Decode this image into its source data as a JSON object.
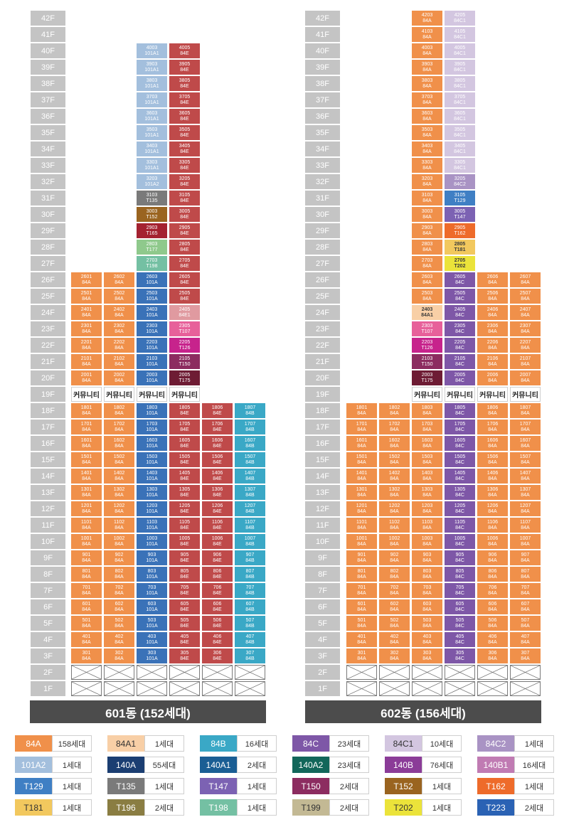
{
  "floors": [
    "42F",
    "41F",
    "40F",
    "39F",
    "38F",
    "37F",
    "36F",
    "35F",
    "34F",
    "33F",
    "32F",
    "31F",
    "30F",
    "29F",
    "28F",
    "27F",
    "26F",
    "25F",
    "24F",
    "23F",
    "22F",
    "21F",
    "20F",
    "19F",
    "18F",
    "17F",
    "16F",
    "15F",
    "14F",
    "13F",
    "12F",
    "11F",
    "10F",
    "9F",
    "8F",
    "7F",
    "6F",
    "5F",
    "4F",
    "3F",
    "2F",
    "1F"
  ],
  "community_label": "커뮤니티",
  "buildings": [
    {
      "name": "601동 (152세대)"
    },
    {
      "name": "602동 (156세대)"
    }
  ],
  "type_colors": {
    "84A": "#f0904a",
    "84A1": "#f8cfa6",
    "84B": "#3aa8c6",
    "84C": "#7e57a7",
    "84C1": "#d3c6e0",
    "84C2": "#a993c4",
    "101A1": "#a3bfdd",
    "101A2": "#a3bfdd",
    "101A": "#3a72b8",
    "84E": "#bf4a4a",
    "84E1": "#e09aa0",
    "T129": "#3f7fc4",
    "T135": "#7a7a7a",
    "T147": "#7c62b3",
    "T150": "#8c2c60",
    "T152": "#9a6420",
    "T162": "#ee6b2a",
    "T181": "#f2c85e",
    "T196": "#8a7d42",
    "T198": "#74c0a3",
    "T199": "#c3b994",
    "T202": "#ebe33a",
    "T223": "#2a62b4",
    "T107": "#e7609a",
    "T126": "#c7238c",
    "T165": "#a42230",
    "T177": "#8fc98c",
    "T175": "#6e1c34"
  },
  "units": [
    {
      "u": "4003",
      "t": "101A1"
    },
    {
      "u": "4005",
      "t": "84E"
    },
    {
      "u": "3903",
      "t": "101A1"
    },
    {
      "u": "3905",
      "t": "84E"
    },
    {
      "u": "3803",
      "t": "101A1"
    },
    {
      "u": "3805",
      "t": "84E"
    },
    {
      "u": "3703",
      "t": "101A1"
    },
    {
      "u": "3705",
      "t": "84E"
    },
    {
      "u": "3603",
      "t": "101A1"
    },
    {
      "u": "3605",
      "t": "84E"
    },
    {
      "u": "3503",
      "t": "101A1"
    },
    {
      "u": "3505",
      "t": "84E"
    },
    {
      "u": "3403",
      "t": "101A1"
    },
    {
      "u": "3405",
      "t": "84E"
    },
    {
      "u": "3303",
      "t": "101A1"
    },
    {
      "u": "3305",
      "t": "84E"
    },
    {
      "u": "3203",
      "t": "101A2"
    },
    {
      "u": "3205",
      "t": "84E"
    },
    {
      "u": "3103",
      "t": "T135"
    },
    {
      "u": "3105",
      "t": "84E"
    },
    {
      "u": "3003",
      "t": "T152"
    },
    {
      "u": "3005",
      "t": "84E"
    },
    {
      "u": "2903",
      "t": "T165"
    },
    {
      "u": "2905",
      "t": "84E"
    },
    {
      "u": "2803",
      "t": "T177"
    },
    {
      "u": "2805",
      "t": "84E"
    },
    {
      "u": "2703",
      "t": "T198"
    },
    {
      "u": "2705",
      "t": "84E"
    },
    {
      "u": "2601",
      "t": "84A"
    },
    {
      "u": "2602",
      "t": "84A"
    },
    {
      "u": "2603",
      "t": "101A"
    },
    {
      "u": "2605",
      "t": "84E"
    },
    {
      "u": "2501",
      "t": "84A"
    },
    {
      "u": "2502",
      "t": "84A"
    },
    {
      "u": "2503",
      "t": "101A"
    },
    {
      "u": "2505",
      "t": "84E"
    },
    {
      "u": "2401",
      "t": "84A"
    },
    {
      "u": "2402",
      "t": "84A"
    },
    {
      "u": "2403",
      "t": "101A"
    },
    {
      "u": "2405",
      "t": "84E1"
    },
    {
      "u": "2301",
      "t": "84A"
    },
    {
      "u": "2302",
      "t": "84A"
    },
    {
      "u": "2303",
      "t": "101A"
    },
    {
      "u": "2305",
      "t": "T107"
    },
    {
      "u": "2201",
      "t": "84A"
    },
    {
      "u": "2202",
      "t": "84A"
    },
    {
      "u": "2203",
      "t": "101A"
    },
    {
      "u": "2205",
      "t": "T126"
    },
    {
      "u": "2101",
      "t": "84A"
    },
    {
      "u": "2102",
      "t": "84A"
    },
    {
      "u": "2103",
      "t": "101A"
    },
    {
      "u": "2105",
      "t": "T150"
    },
    {
      "u": "2001",
      "t": "84A"
    },
    {
      "u": "2002",
      "t": "84A"
    },
    {
      "u": "2003",
      "t": "101A"
    },
    {
      "u": "2005",
      "t": "T175"
    },
    {
      "u": "1801",
      "t": "84A"
    },
    {
      "u": "1802",
      "t": "84A"
    },
    {
      "u": "1803",
      "t": "101A"
    },
    {
      "u": "1805",
      "t": "84E"
    },
    {
      "u": "1806",
      "t": "84E"
    },
    {
      "u": "1807",
      "t": "84B"
    },
    {
      "u": "1701",
      "t": "84A"
    },
    {
      "u": "1702",
      "t": "84A"
    },
    {
      "u": "1703",
      "t": "101A"
    },
    {
      "u": "1705",
      "t": "84E"
    },
    {
      "u": "1706",
      "t": "84E"
    },
    {
      "u": "1707",
      "t": "84B"
    },
    {
      "u": "1601",
      "t": "84A"
    },
    {
      "u": "1602",
      "t": "84A"
    },
    {
      "u": "1603",
      "t": "101A"
    },
    {
      "u": "1605",
      "t": "84E"
    },
    {
      "u": "1606",
      "t": "84E"
    },
    {
      "u": "1607",
      "t": "84B"
    },
    {
      "u": "1501",
      "t": "84A"
    },
    {
      "u": "1502",
      "t": "84A"
    },
    {
      "u": "1503",
      "t": "101A"
    },
    {
      "u": "1505",
      "t": "84E"
    },
    {
      "u": "1506",
      "t": "84E"
    },
    {
      "u": "1507",
      "t": "84B"
    },
    {
      "u": "1401",
      "t": "84A"
    },
    {
      "u": "1402",
      "t": "84A"
    },
    {
      "u": "1403",
      "t": "101A"
    },
    {
      "u": "1405",
      "t": "84E"
    },
    {
      "u": "1406",
      "t": "84E"
    },
    {
      "u": "1407",
      "t": "84B"
    },
    {
      "u": "1301",
      "t": "84A"
    },
    {
      "u": "1302",
      "t": "84A"
    },
    {
      "u": "1303",
      "t": "101A"
    },
    {
      "u": "1305",
      "t": "84E"
    },
    {
      "u": "1306",
      "t": "84E"
    },
    {
      "u": "1307",
      "t": "84B"
    },
    {
      "u": "1201",
      "t": "84A"
    },
    {
      "u": "1202",
      "t": "84A"
    },
    {
      "u": "1203",
      "t": "101A"
    },
    {
      "u": "1205",
      "t": "84E"
    },
    {
      "u": "1206",
      "t": "84E"
    },
    {
      "u": "1207",
      "t": "84B"
    },
    {
      "u": "1101",
      "t": "84A"
    },
    {
      "u": "1102",
      "t": "84A"
    },
    {
      "u": "1103",
      "t": "101A"
    },
    {
      "u": "1105",
      "t": "84E"
    },
    {
      "u": "1106",
      "t": "84E"
    },
    {
      "u": "1107",
      "t": "84B"
    },
    {
      "u": "1001",
      "t": "84A"
    },
    {
      "u": "1002",
      "t": "84A"
    },
    {
      "u": "1003",
      "t": "101A"
    },
    {
      "u": "1005",
      "t": "84E"
    },
    {
      "u": "1006",
      "t": "84E"
    },
    {
      "u": "1007",
      "t": "84B"
    },
    {
      "u": "901",
      "t": "84A"
    },
    {
      "u": "902",
      "t": "84A"
    },
    {
      "u": "903",
      "t": "101A"
    },
    {
      "u": "905",
      "t": "84E"
    },
    {
      "u": "906",
      "t": "84E"
    },
    {
      "u": "907",
      "t": "84B"
    },
    {
      "u": "801",
      "t": "84A"
    },
    {
      "u": "802",
      "t": "84A"
    },
    {
      "u": "803",
      "t": "101A"
    },
    {
      "u": "805",
      "t": "84E"
    },
    {
      "u": "806",
      "t": "84E"
    },
    {
      "u": "807",
      "t": "84B"
    },
    {
      "u": "701",
      "t": "84A"
    },
    {
      "u": "702",
      "t": "84A"
    },
    {
      "u": "703",
      "t": "101A"
    },
    {
      "u": "705",
      "t": "84E"
    },
    {
      "u": "706",
      "t": "84E"
    },
    {
      "u": "707",
      "t": "84B"
    },
    {
      "u": "601",
      "t": "84A"
    },
    {
      "u": "602",
      "t": "84A"
    },
    {
      "u": "603",
      "t": "101A"
    },
    {
      "u": "605",
      "t": "84E"
    },
    {
      "u": "606",
      "t": "84E"
    },
    {
      "u": "607",
      "t": "84B"
    },
    {
      "u": "501",
      "t": "84A"
    },
    {
      "u": "502",
      "t": "84A"
    },
    {
      "u": "503",
      "t": "101A"
    },
    {
      "u": "505",
      "t": "84E"
    },
    {
      "u": "506",
      "t": "84E"
    },
    {
      "u": "507",
      "t": "84B"
    },
    {
      "u": "401",
      "t": "84A"
    },
    {
      "u": "402",
      "t": "84A"
    },
    {
      "u": "403",
      "t": "101A"
    },
    {
      "u": "405",
      "t": "84E"
    },
    {
      "u": "406",
      "t": "84E"
    },
    {
      "u": "407",
      "t": "84B"
    },
    {
      "u": "301",
      "t": "84A"
    },
    {
      "u": "302",
      "t": "84A"
    },
    {
      "u": "303",
      "t": "101A"
    },
    {
      "u": "305",
      "t": "84E"
    },
    {
      "u": "306",
      "t": "84E"
    },
    {
      "u": "307",
      "t": "84B"
    },
    {
      "u": "4203",
      "t": "84A"
    },
    {
      "u": "4205",
      "t": "84C1"
    },
    {
      "u": "4103",
      "t": "84A"
    },
    {
      "u": "4105",
      "t": "84C1"
    },
    {
      "u": "4003",
      "t": "84A"
    },
    {
      "u": "4005",
      "t": "84C1"
    },
    {
      "u": "3903",
      "t": "84A"
    },
    {
      "u": "3905",
      "t": "84C1"
    },
    {
      "u": "3803",
      "t": "84A"
    },
    {
      "u": "3805",
      "t": "84C1"
    },
    {
      "u": "3703",
      "t": "84A"
    },
    {
      "u": "3705",
      "t": "84C1"
    },
    {
      "u": "3603",
      "t": "84A"
    },
    {
      "u": "3605",
      "t": "84C1"
    },
    {
      "u": "3503",
      "t": "84A"
    },
    {
      "u": "3505",
      "t": "84C1"
    },
    {
      "u": "3403",
      "t": "84A"
    },
    {
      "u": "3405",
      "t": "84C1"
    },
    {
      "u": "3303",
      "t": "84A"
    },
    {
      "u": "3305",
      "t": "84C1"
    },
    {
      "u": "3203",
      "t": "84A"
    },
    {
      "u": "3205",
      "t": "84C2"
    },
    {
      "u": "3103",
      "t": "84A"
    },
    {
      "u": "3105",
      "t": "T129"
    },
    {
      "u": "3003",
      "t": "84A"
    },
    {
      "u": "3005",
      "t": "T147"
    },
    {
      "u": "2903",
      "t": "84A"
    },
    {
      "u": "2905",
      "t": "T162"
    },
    {
      "u": "2803",
      "t": "84A"
    },
    {
      "u": "2805",
      "t": "T181"
    },
    {
      "u": "2703",
      "t": "84A"
    },
    {
      "u": "2705",
      "t": "T202"
    },
    {
      "u": "2603",
      "t": "84A"
    },
    {
      "u": "2605",
      "t": "84C"
    },
    {
      "u": "2606",
      "t": "84A"
    },
    {
      "u": "2607",
      "t": "84A"
    },
    {
      "u": "2503",
      "t": "84A"
    },
    {
      "u": "2505",
      "t": "84C"
    },
    {
      "u": "2506",
      "t": "84A"
    },
    {
      "u": "2507",
      "t": "84A"
    },
    {
      "u": "2403",
      "t": "84A1"
    },
    {
      "u": "2405",
      "t": "84C"
    },
    {
      "u": "2406",
      "t": "84A"
    },
    {
      "u": "2407",
      "t": "84A"
    },
    {
      "u": "2303",
      "t": "T107"
    },
    {
      "u": "2305",
      "t": "84C"
    },
    {
      "u": "2306",
      "t": "84A"
    },
    {
      "u": "2307",
      "t": "84A"
    },
    {
      "u": "2203",
      "t": "T126"
    },
    {
      "u": "2205",
      "t": "84C"
    },
    {
      "u": "2206",
      "t": "84A"
    },
    {
      "u": "2207",
      "t": "84A"
    },
    {
      "u": "2103",
      "t": "T150"
    },
    {
      "u": "2105",
      "t": "84C"
    },
    {
      "u": "2106",
      "t": "84A"
    },
    {
      "u": "2107",
      "t": "84A"
    },
    {
      "u": "2003",
      "t": "T175"
    },
    {
      "u": "2005",
      "t": "84C"
    },
    {
      "u": "2006",
      "t": "84A"
    },
    {
      "u": "2007",
      "t": "84A"
    },
    {
      "u": "1801",
      "t": "84A"
    },
    {
      "u": "1802",
      "t": "84A"
    },
    {
      "u": "1803",
      "t": "84A"
    },
    {
      "u": "1805",
      "t": "84C"
    },
    {
      "u": "1806",
      "t": "84A"
    },
    {
      "u": "1807",
      "t": "84A"
    },
    {
      "u": "1701",
      "t": "84A"
    },
    {
      "u": "1702",
      "t": "84A"
    },
    {
      "u": "1703",
      "t": "84A"
    },
    {
      "u": "1705",
      "t": "84C"
    },
    {
      "u": "1706",
      "t": "84A"
    },
    {
      "u": "1707",
      "t": "84A"
    },
    {
      "u": "1601",
      "t": "84A"
    },
    {
      "u": "1602",
      "t": "84A"
    },
    {
      "u": "1603",
      "t": "84A"
    },
    {
      "u": "1605",
      "t": "84C"
    },
    {
      "u": "1606",
      "t": "84A"
    },
    {
      "u": "1607",
      "t": "84A"
    },
    {
      "u": "1501",
      "t": "84A"
    },
    {
      "u": "1502",
      "t": "84A"
    },
    {
      "u": "1503",
      "t": "84A"
    },
    {
      "u": "1505",
      "t": "84C"
    },
    {
      "u": "1506",
      "t": "84A"
    },
    {
      "u": "1507",
      "t": "84A"
    },
    {
      "u": "1401",
      "t": "84A"
    },
    {
      "u": "1402",
      "t": "84A"
    },
    {
      "u": "1403",
      "t": "84A"
    },
    {
      "u": "1405",
      "t": "84C"
    },
    {
      "u": "1406",
      "t": "84A"
    },
    {
      "u": "1407",
      "t": "84A"
    },
    {
      "u": "1301",
      "t": "84A"
    },
    {
      "u": "1302",
      "t": "84A"
    },
    {
      "u": "1303",
      "t": "84A"
    },
    {
      "u": "1305",
      "t": "84C"
    },
    {
      "u": "1306",
      "t": "84A"
    },
    {
      "u": "1307",
      "t": "84A"
    },
    {
      "u": "1201",
      "t": "84A"
    },
    {
      "u": "1202",
      "t": "84A"
    },
    {
      "u": "1203",
      "t": "84A"
    },
    {
      "u": "1205",
      "t": "84C"
    },
    {
      "u": "1206",
      "t": "84A"
    },
    {
      "u": "1207",
      "t": "84A"
    },
    {
      "u": "1101",
      "t": "84A"
    },
    {
      "u": "1102",
      "t": "84A"
    },
    {
      "u": "1103",
      "t": "84A"
    },
    {
      "u": "1105",
      "t": "84C"
    },
    {
      "u": "1106",
      "t": "84A"
    },
    {
      "u": "1107",
      "t": "84A"
    },
    {
      "u": "1001",
      "t": "84A"
    },
    {
      "u": "1002",
      "t": "84A"
    },
    {
      "u": "1003",
      "t": "84A"
    },
    {
      "u": "1005",
      "t": "84C"
    },
    {
      "u": "1006",
      "t": "84A"
    },
    {
      "u": "1007",
      "t": "84A"
    },
    {
      "u": "901",
      "t": "84A"
    },
    {
      "u": "902",
      "t": "84A"
    },
    {
      "u": "903",
      "t": "84A"
    },
    {
      "u": "905",
      "t": "84C"
    },
    {
      "u": "906",
      "t": "84A"
    },
    {
      "u": "907",
      "t": "84A"
    },
    {
      "u": "801",
      "t": "84A"
    },
    {
      "u": "802",
      "t": "84A"
    },
    {
      "u": "803",
      "t": "84A"
    },
    {
      "u": "805",
      "t": "84C"
    },
    {
      "u": "806",
      "t": "84A"
    },
    {
      "u": "807",
      "t": "84A"
    },
    {
      "u": "701",
      "t": "84A"
    },
    {
      "u": "702",
      "t": "84A"
    },
    {
      "u": "703",
      "t": "84A"
    },
    {
      "u": "705",
      "t": "84C"
    },
    {
      "u": "706",
      "t": "84A"
    },
    {
      "u": "707",
      "t": "84A"
    },
    {
      "u": "601",
      "t": "84A"
    },
    {
      "u": "602",
      "t": "84A"
    },
    {
      "u": "603",
      "t": "84A"
    },
    {
      "u": "605",
      "t": "84C"
    },
    {
      "u": "606",
      "t": "84A"
    },
    {
      "u": "607",
      "t": "84A"
    },
    {
      "u": "501",
      "t": "84A"
    },
    {
      "u": "502",
      "t": "84A"
    },
    {
      "u": "503",
      "t": "84A"
    },
    {
      "u": "505",
      "t": "84C"
    },
    {
      "u": "506",
      "t": "84A"
    },
    {
      "u": "507",
      "t": "84A"
    },
    {
      "u": "401",
      "t": "84A"
    },
    {
      "u": "402",
      "t": "84A"
    },
    {
      "u": "403",
      "t": "84A"
    },
    {
      "u": "405",
      "t": "84C"
    },
    {
      "u": "406",
      "t": "84A"
    },
    {
      "u": "407",
      "t": "84A"
    },
    {
      "u": "301",
      "t": "84A"
    },
    {
      "u": "302",
      "t": "84A"
    },
    {
      "u": "303",
      "t": "84A"
    },
    {
      "u": "305",
      "t": "84C"
    },
    {
      "u": "306",
      "t": "84A"
    },
    {
      "u": "307",
      "t": "84A"
    }
  ],
  "legend": [
    {
      "type": "84A",
      "count": "158세대"
    },
    {
      "type": "84A1",
      "count": "1세대"
    },
    {
      "type": "84B",
      "count": "16세대"
    },
    {
      "type": "84C",
      "count": "23세대"
    },
    {
      "type": "84C1",
      "count": "10세대"
    },
    {
      "type": "84C2",
      "count": "1세대"
    },
    {
      "type": "101A2",
      "count": "1세대"
    },
    {
      "type": "140A",
      "count": "55세대"
    },
    {
      "type": "140A1",
      "count": "2세대"
    },
    {
      "type": "140A2",
      "count": "23세대"
    },
    {
      "type": "140B",
      "count": "76세대"
    },
    {
      "type": "140B1",
      "count": "16세대"
    },
    {
      "type": "T129",
      "count": "1세대"
    },
    {
      "type": "T135",
      "count": "1세대"
    },
    {
      "type": "T147",
      "count": "1세대"
    },
    {
      "type": "T150",
      "count": "2세대"
    },
    {
      "type": "T152",
      "count": "1세대"
    },
    {
      "type": "T162",
      "count": "1세대"
    },
    {
      "type": "T181",
      "count": "1세대"
    },
    {
      "type": "T196",
      "count": "2세대"
    },
    {
      "type": "T198",
      "count": "1세대"
    },
    {
      "type": "T199",
      "count": "2세대"
    },
    {
      "type": "T202",
      "count": "1세대"
    },
    {
      "type": "T223",
      "count": "2세대"
    }
  ],
  "legend_colors": {
    "84A": "#f0904a",
    "84A1": "#f8cfa6",
    "84B": "#3aa8c6",
    "84C": "#7e57a7",
    "84C1": "#d3c6e0",
    "84C2": "#a993c4",
    "101A2": "#a3bfdd",
    "140A": "#1b3e72",
    "140A1": "#1a5e94",
    "140A2": "#12665a",
    "140B": "#8b3c98",
    "140B1": "#c07bb3",
    "T129": "#3f7fc4",
    "T135": "#7a7a7a",
    "T147": "#7c62b3",
    "T150": "#8c2c60",
    "T152": "#9a6420",
    "T162": "#ee6b2a",
    "T181": "#f2c85e",
    "T196": "#8a7d42",
    "T198": "#74c0a3",
    "T199": "#c3b994",
    "T202": "#ebe33a",
    "T223": "#2a62b4"
  }
}
